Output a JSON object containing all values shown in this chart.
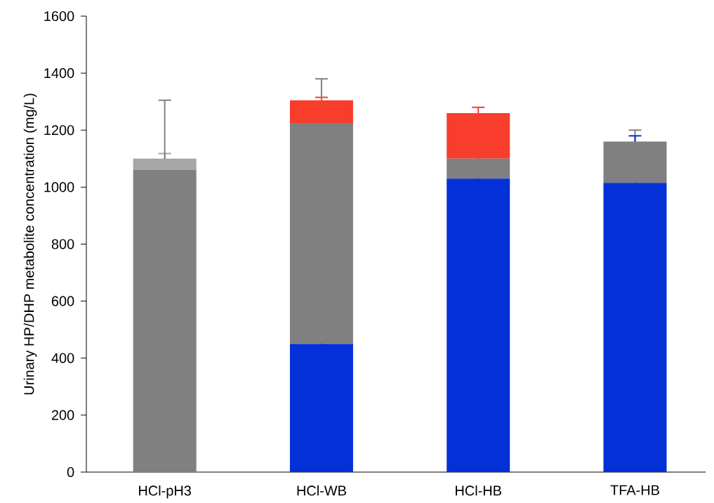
{
  "chart_data": {
    "type": "bar",
    "stacked": true,
    "ylabel": "Urinary HP/DHP metabolite concentration (mg/L)",
    "categories": [
      "HCl-pH3",
      "HCl-WB",
      "HCl-HB",
      "TFA-HB"
    ],
    "ylim": [
      0,
      1600
    ],
    "yticks": [
      0,
      200,
      400,
      600,
      800,
      1000,
      1200,
      1400,
      1600
    ],
    "grid": false,
    "series": [
      {
        "color": "#0430d8",
        "values": [
          0,
          450,
          1030,
          1015
        ],
        "errors": [
          null,
          90,
          170,
          165
        ]
      },
      {
        "color": "#808080",
        "values": [
          1060,
          775,
          70,
          145
        ],
        "errors": [
          245,
          155,
          20,
          40
        ]
      },
      {
        "color": "#a6a6a6",
        "values": [
          40,
          0,
          0,
          0
        ],
        "errors": [
          18,
          null,
          null,
          null
        ]
      },
      {
        "color": "#f83d2c",
        "values": [
          0,
          80,
          160,
          0
        ],
        "errors": [
          null,
          10,
          20,
          null
        ]
      }
    ]
  }
}
